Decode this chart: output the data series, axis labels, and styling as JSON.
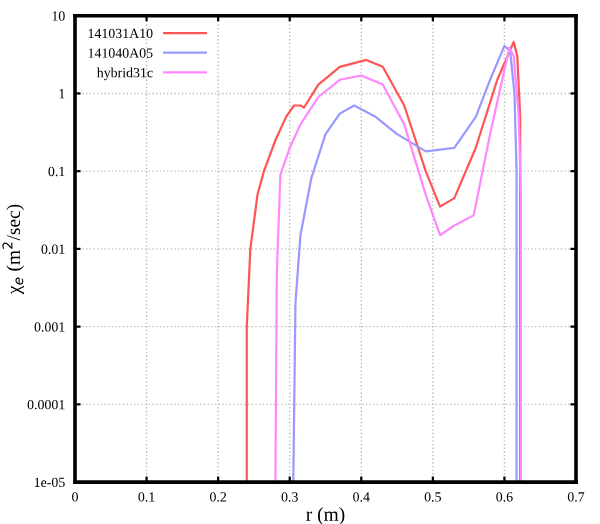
{
  "chart_data": {
    "type": "line",
    "xlabel": "r (m)",
    "ylabel": "χ$_{e}$ (m$^{2}$/sec)",
    "log": "y",
    "grid": true,
    "legend": "top left",
    "xlim": [
      0,
      0.7
    ],
    "ylim": [
      1e-05,
      10
    ],
    "xticks": [
      0,
      0.1,
      0.2,
      0.3,
      0.4,
      0.5,
      0.6,
      0.7
    ],
    "yticks": [
      {
        "value": 1e-05,
        "label": "1e-05"
      },
      {
        "value": 0.0001,
        "label": "0.0001"
      },
      {
        "value": 0.001,
        "label": "0.001"
      },
      {
        "value": 0.01,
        "label": "0.01"
      },
      {
        "value": 0.1,
        "label": "0.1"
      },
      {
        "value": 1,
        "label": "1"
      },
      {
        "value": 10,
        "label": "10"
      }
    ],
    "series": [
      {
        "name": "141031A10",
        "color": "#ff5555",
        "x": [
          0.24,
          0.24,
          0.245,
          0.255,
          0.264,
          0.28,
          0.295,
          0.306,
          0.315,
          0.32,
          0.34,
          0.37,
          0.407,
          0.43,
          0.46,
          0.49,
          0.51,
          0.53,
          0.56,
          0.59,
          0.613,
          0.618,
          0.622,
          0.622
        ],
        "values": [
          1e-05,
          0.001,
          0.01,
          0.05,
          0.1,
          0.25,
          0.5,
          0.7,
          0.7,
          0.66,
          1.3,
          2.2,
          2.7,
          2.2,
          0.7,
          0.1,
          0.035,
          0.045,
          0.2,
          1.5,
          4.6,
          3,
          0.5,
          1e-05
        ]
      },
      {
        "name": "141040A05",
        "color": "#9999ff",
        "x": [
          0.305,
          0.308,
          0.315,
          0.33,
          0.35,
          0.37,
          0.39,
          0.42,
          0.45,
          0.49,
          0.53,
          0.56,
          0.58,
          0.6,
          0.608,
          0.614,
          0.617,
          0.617
        ],
        "values": [
          1e-05,
          0.002,
          0.015,
          0.08,
          0.3,
          0.55,
          0.7,
          0.5,
          0.3,
          0.18,
          0.2,
          0.5,
          1.5,
          4.1,
          3.5,
          1,
          0.1,
          1e-05
        ]
      },
      {
        "name": "hybrid31c",
        "color": "#ff88ff",
        "x": [
          0.28,
          0.282,
          0.287,
          0.3,
          0.315,
          0.34,
          0.37,
          0.4,
          0.43,
          0.46,
          0.49,
          0.51,
          0.53,
          0.557,
          0.58,
          0.607,
          0.613,
          0.62,
          0.623,
          0.623
        ],
        "values": [
          1e-05,
          0.005,
          0.09,
          0.2,
          0.4,
          0.9,
          1.5,
          1.7,
          1.3,
          0.4,
          0.05,
          0.015,
          0.02,
          0.027,
          0.3,
          3.9,
          3,
          0.5,
          0.05,
          1e-05
        ]
      }
    ]
  }
}
